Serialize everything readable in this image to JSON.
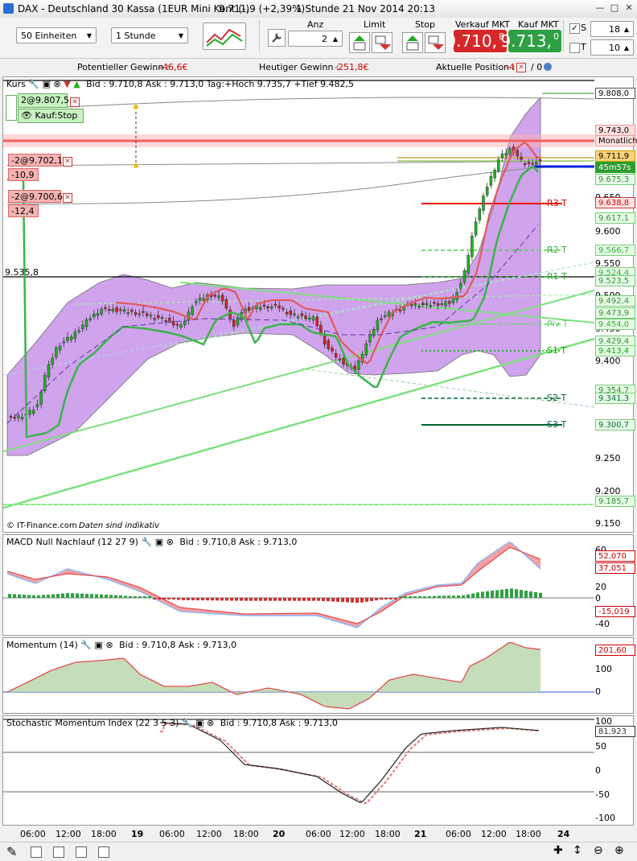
{
  "window": {
    "title": "DAX - Deutschland 30 Kassa (1EUR Mini Kont (-)",
    "price_info": "9.711,9 (+2,39%)",
    "interval_info": "1 Stunde  21 Nov 2014 20:13"
  },
  "toolbar": {
    "units_select": "50 Einheiten",
    "interval_select": "1 Stunde",
    "anz_label": "Anz",
    "anz_value": "2",
    "limit_label": "Limit",
    "stop_label": "Stop",
    "sell_label": "Verkauf MKT",
    "sell_main": "9.710,",
    "sell_frac": "8",
    "buy_label": "Kauf MKT",
    "buy_main": "9.713,",
    "buy_frac": "0",
    "s_label": "S",
    "s_value": "18",
    "t_label": "T",
    "t_value": "10"
  },
  "stats": {
    "pot_label": "Potentieller Gewinn :",
    "pot_value": "-46,6€",
    "today_label": "Heutiger Gewinn :",
    "today_value": "-251,8€",
    "pos_label": "Aktuelle Position :",
    "pos_short": "-4",
    "pos_long": "/ 0"
  },
  "main_panel": {
    "title": "Kurs",
    "info": "Bid : 9.710,8 Ask : 9.713,0 Tag:+Hoch 9.735,7 +Tief 9.482,5",
    "order1": "2@9.807,5",
    "order1_type": "Kauf:Stop",
    "order2": "-2@9.702,1",
    "order2_pl": "-10,9",
    "order3": "-2@9.700,6",
    "order3_pl": "-12,4",
    "level_535": "9.535,8",
    "watermark_src": "© IT-Finance.com",
    "watermark_note": "Daten sind indikativ",
    "pivots": [
      "R3 T",
      "R2 T",
      "R1 T",
      "Piv T",
      "S1 T",
      "S2 T",
      "S3 T"
    ],
    "pivot_values": [
      9638.8,
      9566.7,
      9524.4,
      9454.0,
      9413.4,
      9341.3,
      9300.7
    ],
    "axis_labels": [
      "9.650",
      "9.600",
      "9.550",
      "9.500",
      "9.450",
      "9.400",
      "9.250",
      "9.200",
      "9.150"
    ],
    "price_boxes": [
      "9.808,0",
      "9.743,0",
      "Monatlich",
      "9.711,9",
      "45m57s",
      "9.675,3",
      "9.638,8",
      "9.617,1",
      "9.566,7",
      "9.524,4",
      "9.523,5",
      "9.492,4",
      "9.473,9",
      "9.454,0",
      "9.429,4",
      "9.413,4",
      "9.354,7",
      "9.341,3",
      "9.300,7",
      "9.185,7"
    ]
  },
  "macd_panel": {
    "title": "MACD Null Nachlauf (12 27 9)",
    "info": "Bid : 9.710,8 Ask : 9.713,0",
    "axis": [
      "60",
      "40",
      "20",
      "0",
      "-20",
      "-40"
    ],
    "val1": "52,070",
    "val2": "37,051",
    "val3": "-15,019"
  },
  "mom_panel": {
    "title": "Momentum (14)",
    "info": "Bid : 9.710,8 Ask : 9.713,0",
    "axis": [
      "200",
      "100",
      "0"
    ],
    "val": "201,60"
  },
  "smi_panel": {
    "title": "Stochastic Momentum Index (22 3 5 3)",
    "info": "Bid : 9.710,8 Ask : 9.713,0",
    "axis": [
      "100",
      "50",
      "0",
      "-50",
      "-100"
    ],
    "val": "81,923"
  },
  "time_axis": [
    "06:00",
    "12:00",
    "18:00",
    "19",
    "06:00",
    "12:00",
    "18:00",
    "20",
    "06:00",
    "12:00",
    "18:00",
    "21",
    "06:00",
    "12:00",
    "18:00",
    "24"
  ],
  "colors": {
    "up": "#22b022",
    "down": "#d42020",
    "band": "#c48ee6",
    "sell": "#d62828",
    "buy": "#2ea043"
  }
}
